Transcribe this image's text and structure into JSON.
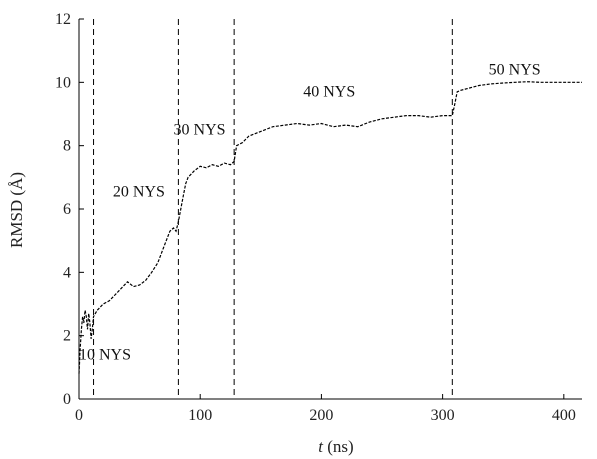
{
  "chart_data": {
    "type": "line",
    "title": "",
    "xlabel_italic": "t",
    "xlabel_rest": " (ns)",
    "ylabel": "RMSD (Å)",
    "xlim": [
      0,
      415
    ],
    "ylim": [
      0,
      12
    ],
    "xticks": [
      0,
      100,
      200,
      300,
      400
    ],
    "yticks": [
      0,
      2,
      4,
      6,
      8,
      10,
      12
    ],
    "grid": false,
    "vertical_lines": [
      12,
      82,
      128,
      308
    ],
    "annotations": [
      {
        "text": "10 NYS",
        "x": 0,
        "y": 1.25
      },
      {
        "text": "20 NYS",
        "x": 28,
        "y": 6.4
      },
      {
        "text": "30 NYS",
        "x": 78,
        "y": 8.35
      },
      {
        "text": "40 NYS",
        "x": 185,
        "y": 9.55
      },
      {
        "text": "50 NYS",
        "x": 338,
        "y": 10.25
      }
    ],
    "series": [
      {
        "values": [
          [
            0,
            0.8
          ],
          [
            1,
            1.6
          ],
          [
            2,
            2.2
          ],
          [
            3,
            2.6
          ],
          [
            4,
            2.4
          ],
          [
            5,
            2.8
          ],
          [
            6,
            2.6
          ],
          [
            7,
            2.2
          ],
          [
            8,
            2.7
          ],
          [
            9,
            2.4
          ],
          [
            10,
            1.9
          ],
          [
            11,
            2.2
          ],
          [
            12,
            2.6
          ],
          [
            15,
            2.8
          ],
          [
            20,
            3.0
          ],
          [
            25,
            3.1
          ],
          [
            30,
            3.3
          ],
          [
            35,
            3.5
          ],
          [
            40,
            3.7
          ],
          [
            45,
            3.55
          ],
          [
            50,
            3.6
          ],
          [
            55,
            3.75
          ],
          [
            60,
            4.0
          ],
          [
            65,
            4.3
          ],
          [
            70,
            4.8
          ],
          [
            75,
            5.3
          ],
          [
            78,
            5.4
          ],
          [
            80,
            5.3
          ],
          [
            82,
            5.6
          ],
          [
            84,
            6.0
          ],
          [
            86,
            6.4
          ],
          [
            88,
            6.8
          ],
          [
            90,
            7.0
          ],
          [
            95,
            7.2
          ],
          [
            100,
            7.35
          ],
          [
            105,
            7.3
          ],
          [
            110,
            7.4
          ],
          [
            115,
            7.35
          ],
          [
            120,
            7.45
          ],
          [
            125,
            7.4
          ],
          [
            128,
            7.5
          ],
          [
            130,
            8.0
          ],
          [
            135,
            8.1
          ],
          [
            140,
            8.3
          ],
          [
            150,
            8.45
          ],
          [
            160,
            8.6
          ],
          [
            170,
            8.65
          ],
          [
            180,
            8.7
          ],
          [
            190,
            8.65
          ],
          [
            200,
            8.7
          ],
          [
            210,
            8.6
          ],
          [
            220,
            8.65
          ],
          [
            230,
            8.6
          ],
          [
            240,
            8.75
          ],
          [
            250,
            8.85
          ],
          [
            260,
            8.9
          ],
          [
            270,
            8.95
          ],
          [
            280,
            8.95
          ],
          [
            290,
            8.9
          ],
          [
            300,
            8.95
          ],
          [
            308,
            8.95
          ],
          [
            310,
            9.3
          ],
          [
            312,
            9.7
          ],
          [
            315,
            9.75
          ],
          [
            320,
            9.8
          ],
          [
            330,
            9.9
          ],
          [
            340,
            9.95
          ],
          [
            350,
            9.98
          ],
          [
            360,
            10.0
          ],
          [
            370,
            10.02
          ],
          [
            380,
            10.0
          ],
          [
            390,
            10.0
          ],
          [
            400,
            10.0
          ],
          [
            410,
            10.0
          ],
          [
            415,
            10.0
          ]
        ]
      }
    ]
  }
}
